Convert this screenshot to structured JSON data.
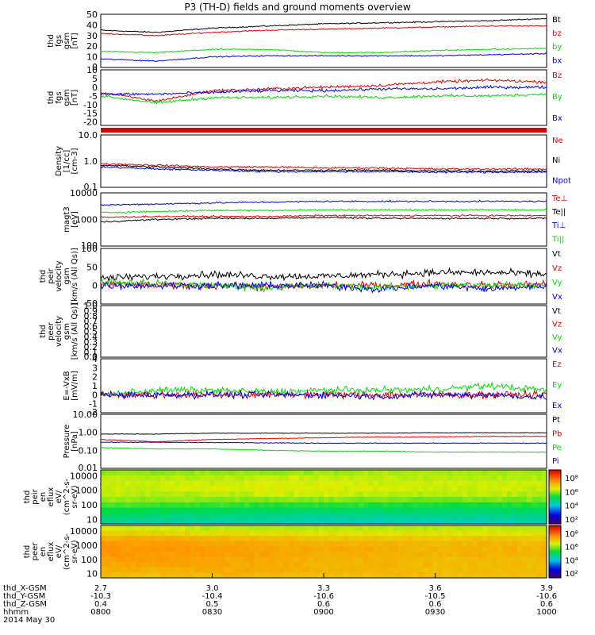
{
  "title": "P3 (TH-D) fields and ground moments overview",
  "colors": {
    "black": "#000000",
    "red": "#e00000",
    "green": "#00dd00",
    "blue": "#0000dd",
    "olive": "#8a5a00"
  },
  "chart_data": [
    {
      "type": "line",
      "ylabel": "thd fgs gsm [nT]",
      "ylim": [
        0,
        50
      ],
      "ticks": [
        "50",
        "40",
        "30",
        "20",
        "10",
        "0"
      ],
      "x": [
        0,
        15,
        30,
        45,
        60,
        75,
        90,
        105,
        120
      ],
      "series": [
        {
          "name": "Bt",
          "color": "#000000",
          "values": [
            35,
            33,
            37,
            39,
            41,
            42,
            43,
            44,
            46
          ]
        },
        {
          "name": "bz",
          "color": "#e00000",
          "values": [
            32,
            30,
            33,
            35,
            36,
            37,
            38,
            39,
            39
          ]
        },
        {
          "name": "by",
          "color": "#00dd00",
          "values": [
            15,
            14,
            17,
            17,
            14,
            14,
            16,
            17,
            18
          ]
        },
        {
          "name": "bx",
          "color": "#0000dd",
          "values": [
            8,
            6,
            10,
            11,
            11,
            11,
            11,
            12,
            13
          ]
        }
      ]
    },
    {
      "type": "line",
      "ylabel": "thd fgs gsm [nT]",
      "ylim": [
        -22,
        10
      ],
      "ticks": [
        "10",
        "5",
        "0",
        "-5",
        "-10",
        "-15",
        "-20"
      ],
      "x": [
        0,
        15,
        30,
        45,
        60,
        75,
        90,
        105,
        120
      ],
      "series": [
        {
          "name": "Bz",
          "color": "#e00000",
          "values": [
            -3,
            -8,
            -2,
            -1,
            0,
            1,
            3,
            4,
            3
          ]
        },
        {
          "name": "By",
          "color": "#00dd00",
          "values": [
            -5,
            -9,
            -6,
            -6,
            -5,
            -6,
            -5,
            -5,
            -4
          ]
        },
        {
          "name": "Bx",
          "color": "#0000dd",
          "values": [
            -4,
            -4,
            -3,
            -2,
            -2,
            -1,
            -1,
            0,
            0
          ]
        }
      ]
    },
    {
      "type": "line",
      "ylabel": "Density [1/cc] [cm-3]",
      "yscale": "log",
      "ylim": [
        0.1,
        10
      ],
      "ticks": [
        "10.0",
        "1.0",
        "0.1"
      ],
      "x": [
        0,
        15,
        30,
        45,
        60,
        75,
        90,
        105,
        120
      ],
      "series": [
        {
          "name": "Ne",
          "color": "#e00000",
          "values": [
            0.8,
            0.7,
            0.6,
            0.6,
            0.55,
            0.55,
            0.5,
            0.5,
            0.5
          ]
        },
        {
          "name": "Ni",
          "color": "#000000",
          "values": [
            0.7,
            0.6,
            0.5,
            0.45,
            0.45,
            0.45,
            0.42,
            0.42,
            0.42
          ]
        },
        {
          "name": "Npot",
          "color": "#0000dd",
          "values": [
            0.6,
            0.5,
            0.45,
            0.4,
            0.4,
            0.4,
            0.38,
            0.38,
            0.38
          ]
        }
      ]
    },
    {
      "type": "line",
      "ylabel": "magt3 [eV]",
      "yscale": "log",
      "ylim": [
        100,
        10000
      ],
      "ticks": [
        "10000",
        "1000",
        "100"
      ],
      "x": [
        0,
        15,
        30,
        45,
        60,
        75,
        90,
        105,
        120
      ],
      "series": [
        {
          "name": "Te⊥",
          "color": "#e00000",
          "values": [
            1200,
            1300,
            1300,
            1300,
            1400,
            1400,
            1400,
            1400,
            1400
          ]
        },
        {
          "name": "Te||",
          "color": "#000000",
          "values": [
            800,
            1000,
            1100,
            1100,
            1200,
            1100,
            1100,
            1100,
            1100
          ]
        },
        {
          "name": "Ti⊥",
          "color": "#0000dd",
          "values": [
            3500,
            3800,
            4200,
            4500,
            4800,
            4800,
            4800,
            4800,
            4800
          ]
        },
        {
          "name": "Ti||",
          "color": "#00dd00",
          "values": [
            1800,
            2000,
            2200,
            2200,
            2300,
            2300,
            2300,
            2300,
            2300
          ]
        }
      ]
    },
    {
      "type": "line",
      "ylabel": "thd peir velocity gsm [km/s (All Qs)]",
      "ylim": [
        -50,
        100
      ],
      "ticks": [
        "100",
        "50",
        "0",
        "-50"
      ],
      "x": [
        0,
        15,
        30,
        45,
        60,
        75,
        90,
        105,
        120
      ],
      "series": [
        {
          "name": "Vt",
          "color": "#000000",
          "values": [
            20,
            25,
            30,
            25,
            25,
            30,
            35,
            35,
            30
          ]
        },
        {
          "name": "Vz",
          "color": "#e00000",
          "values": [
            5,
            0,
            0,
            -5,
            0,
            0,
            5,
            0,
            5
          ]
        },
        {
          "name": "Vy",
          "color": "#00dd00",
          "values": [
            10,
            5,
            0,
            -5,
            0,
            -5,
            0,
            0,
            0
          ]
        },
        {
          "name": "Vx",
          "color": "#0000dd",
          "values": [
            0,
            0,
            0,
            0,
            0,
            -10,
            0,
            -10,
            0
          ]
        }
      ]
    },
    {
      "type": "line",
      "ylabel": "thd peer velocity gsm [km/s (All Qs)]",
      "ylim": [
        0.0,
        1.0
      ],
      "ticks": [
        "1.0",
        "0.9",
        "0.8",
        "0.7",
        "0.6",
        "0.5",
        "0.4",
        "0.3",
        "0.2",
        "0.1",
        "0.0"
      ],
      "series": [
        {
          "name": "Vt",
          "color": "#000000",
          "values": []
        },
        {
          "name": "Vz",
          "color": "#e00000",
          "values": []
        },
        {
          "name": "Vy",
          "color": "#00dd00",
          "values": []
        },
        {
          "name": "Vx",
          "color": "#0000dd",
          "values": []
        }
      ]
    },
    {
      "type": "line",
      "ylabel": "E=-VxB [mV/m]",
      "ylim": [
        -2,
        4
      ],
      "ticks": [
        "4",
        "3",
        "2",
        "1",
        "0",
        "-1",
        "-2"
      ],
      "x": [
        0,
        15,
        30,
        45,
        60,
        75,
        90,
        105,
        120
      ],
      "series": [
        {
          "name": "Ez",
          "color": "#e00000",
          "values": [
            0,
            0,
            0,
            0,
            0,
            0,
            0,
            0,
            0
          ]
        },
        {
          "name": "Ey",
          "color": "#00dd00",
          "values": [
            0,
            0.5,
            0.5,
            0.3,
            0.5,
            0.5,
            0.6,
            1,
            0.5
          ]
        },
        {
          "name": "Ex",
          "color": "#0000dd",
          "values": [
            0,
            0,
            0,
            0,
            0,
            -0.2,
            0,
            0,
            -0.3
          ]
        }
      ]
    },
    {
      "type": "line",
      "ylabel": "Pressure [nPa]",
      "yscale": "log",
      "ylim": [
        0.01,
        10
      ],
      "ticks": [
        "10.00",
        "1.00",
        "0.10",
        "0.01"
      ],
      "x": [
        0,
        15,
        30,
        45,
        60,
        75,
        90,
        105,
        120
      ],
      "series": [
        {
          "name": "Pt",
          "color": "#000000",
          "values": [
            0.8,
            0.8,
            0.9,
            0.9,
            0.9,
            0.9,
            0.95,
            0.95,
            0.95
          ]
        },
        {
          "name": "Pb",
          "color": "#e00000",
          "values": [
            0.4,
            0.3,
            0.4,
            0.45,
            0.5,
            0.55,
            0.55,
            0.6,
            0.6
          ]
        },
        {
          "name": "Pe",
          "color": "#00dd00",
          "values": [
            0.14,
            0.12,
            0.12,
            0.1,
            0.09,
            0.09,
            0.08,
            0.08,
            0.08
          ]
        },
        {
          "name": "Pi",
          "color": "#0000dd",
          "values": [
            0.28,
            0.28,
            0.27,
            0.26,
            0.25,
            0.25,
            0.25,
            0.25,
            0.25
          ]
        }
      ]
    },
    {
      "type": "heatmap",
      "ylabel": "thd peir en eflux eV/ (cm^2-s-sr-eV)",
      "yscale": "log",
      "ylim": [
        5,
        25000
      ],
      "ticks": [
        "10000",
        "1000",
        "100",
        "10"
      ],
      "colorbar": {
        "ticks": [
          "10⁸",
          "10⁶",
          "10⁴",
          "10²"
        ],
        "range": [
          1,
          9
        ]
      },
      "rows": [
        [
          5.8,
          5.8,
          5.8,
          5.8,
          5.9,
          5.9,
          5.9,
          5.9,
          5.9
        ],
        [
          6.0,
          6.0,
          6.0,
          6.1,
          6.1,
          6.0,
          6.0,
          6.0,
          6.0
        ],
        [
          6.1,
          6.1,
          6.1,
          6.2,
          6.2,
          6.1,
          6.1,
          6.1,
          6.1
        ],
        [
          6.1,
          6.1,
          6.2,
          6.2,
          6.2,
          6.2,
          6.1,
          6.1,
          6.1
        ],
        [
          6.0,
          6.0,
          6.0,
          6.1,
          6.1,
          6.0,
          6.0,
          6.0,
          6.0
        ],
        [
          5.8,
          5.8,
          5.7,
          5.7,
          5.7,
          5.7,
          5.6,
          5.7,
          5.7
        ],
        [
          5.4,
          5.3,
          5.3,
          5.2,
          5.2,
          5.2,
          5.1,
          5.1,
          5.2
        ],
        [
          5.0,
          4.9,
          4.8,
          4.8,
          4.7,
          4.7,
          4.7,
          4.7,
          4.8
        ],
        [
          4.7,
          4.5,
          4.5,
          4.4,
          4.3,
          4.4,
          4.3,
          4.4,
          4.4
        ],
        [
          4.3,
          4.2,
          4.1,
          4.1,
          4.0,
          4.0,
          4.0,
          4.0,
          4.1
        ]
      ]
    },
    {
      "type": "heatmap",
      "ylabel": "thd peer en eflux eV/ (cm^2-s-sr-eV)",
      "yscale": "log",
      "ylim": [
        5,
        25000
      ],
      "ticks": [
        "10000",
        "1000",
        "100",
        "10"
      ],
      "colorbar": {
        "ticks": [
          "10⁸",
          "10⁶",
          "10⁴",
          "10²"
        ],
        "range": [
          1,
          9
        ]
      },
      "rows": [
        [
          6.2,
          6.1,
          6.0,
          6.0,
          6.0,
          6.0,
          6.0,
          6.0,
          6.0
        ],
        [
          6.6,
          6.6,
          6.5,
          6.5,
          6.4,
          6.4,
          6.4,
          6.4,
          6.4
        ],
        [
          7.1,
          7.1,
          7.0,
          6.9,
          6.8,
          6.8,
          6.7,
          6.8,
          6.7
        ],
        [
          7.3,
          7.3,
          7.2,
          7.1,
          7.0,
          7.0,
          6.9,
          7.0,
          6.9
        ],
        [
          7.4,
          7.4,
          7.3,
          7.2,
          7.1,
          7.1,
          7.0,
          7.0,
          7.0
        ],
        [
          7.4,
          7.3,
          7.3,
          7.2,
          7.1,
          7.0,
          7.0,
          7.0,
          7.0
        ],
        [
          7.3,
          7.3,
          7.2,
          7.1,
          7.0,
          7.0,
          6.9,
          6.9,
          6.9
        ],
        [
          7.2,
          7.2,
          7.2,
          7.1,
          7.0,
          7.0,
          6.9,
          6.9,
          6.9
        ],
        [
          7.0,
          7.0,
          7.1,
          7.1,
          7.0,
          7.0,
          6.9,
          6.9,
          6.9
        ],
        [
          6.9,
          6.9,
          7.0,
          7.0,
          6.9,
          6.9,
          6.9,
          6.9,
          6.9
        ]
      ]
    }
  ],
  "panel_labels": [
    [
      "thd",
      "fgs",
      "gsm",
      "[nT]"
    ],
    [
      "thd",
      "fgs",
      "gsm",
      "[nT]"
    ],
    [
      "Density",
      "[1/cc]",
      "[cm-3]"
    ],
    [
      "magt3",
      "[eV]"
    ],
    [
      "thd",
      "peir",
      "velocity",
      "gsm",
      "[km/s (All Qs)]"
    ],
    [
      "thd",
      "peer",
      "velocity",
      "gsm",
      "[km/s (All Qs)]"
    ],
    [
      "E=-VxB",
      "[mV/m]"
    ],
    [
      "Pressure",
      "[nPa]"
    ],
    [
      "thd",
      "peir",
      "en",
      "eflux",
      "eV/",
      "(cm^2-s-",
      "sr-eV)"
    ],
    [
      "thd",
      "peer",
      "en",
      "eflux",
      "eV/",
      "(cm^2-s-",
      "sr-eV)"
    ]
  ],
  "xaxis": {
    "row_labels": [
      "thd_X-GSM",
      "thd_Y-GSM",
      "thd_Z-GSM",
      "hhmm",
      "2014 May 30"
    ],
    "columns": [
      [
        "2.7",
        "-10.3",
        "0.4",
        "0800"
      ],
      [
        "3.0",
        "-10.4",
        "0.5",
        "0830"
      ],
      [
        "3.3",
        "-10.6",
        "0.6",
        "0900"
      ],
      [
        "3.6",
        "-10.5",
        "0.6",
        "0930"
      ],
      [
        "3.9",
        "-10.6",
        "0.6",
        "1000"
      ]
    ]
  }
}
